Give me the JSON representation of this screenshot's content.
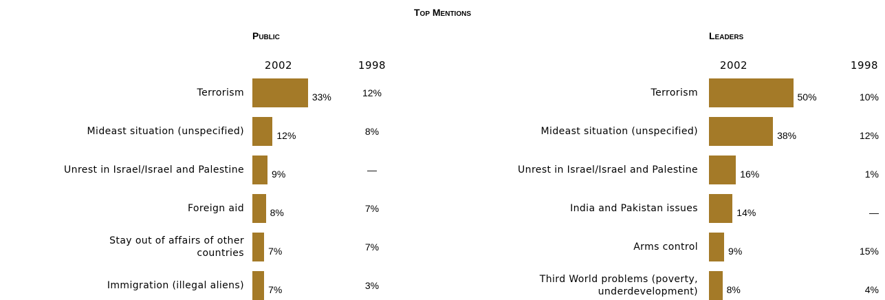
{
  "title": "Top Mentions",
  "chart_data": [
    {
      "type": "bar",
      "orientation": "horizontal",
      "title": "Public",
      "categories": [
        "Terrorism",
        "Mideast situation (unspecified)",
        "Unrest in Israel/Israel and Palestine",
        "Foreign aid",
        "Stay out of affairs of other\ncountries",
        "Immigration (illegal aliens)"
      ],
      "series": [
        {
          "name": "2002",
          "color": "#a47a28",
          "values": [
            33,
            12,
            9,
            8,
            7,
            7
          ],
          "value_labels": [
            "33%",
            "12%",
            "9%",
            "8%",
            "7%",
            "7%"
          ]
        },
        {
          "name": "1998",
          "values": [
            12,
            8,
            null,
            7,
            7,
            3
          ],
          "value_labels": [
            "12%",
            "8%",
            "—",
            "7%",
            "7%",
            "3%"
          ]
        }
      ]
    },
    {
      "type": "bar",
      "orientation": "horizontal",
      "title": "Leaders",
      "categories": [
        "Terrorism",
        "Mideast situation (unspecified)",
        "Unrest in Israel/Israel and Palestine",
        "India and Pakistan issues",
        "Arms control",
        "Third World problems (poverty,\nunderdevelopment)"
      ],
      "series": [
        {
          "name": "2002",
          "color": "#a47a28",
          "values": [
            50,
            38,
            16,
            14,
            9,
            8
          ],
          "value_labels": [
            "50%",
            "38%",
            "16%",
            "14%",
            "9%",
            "8%"
          ]
        },
        {
          "name": "1998",
          "values": [
            10,
            12,
            1,
            null,
            15,
            4
          ],
          "value_labels": [
            "10%",
            "12%",
            "1%",
            "—",
            "15%",
            "4%"
          ]
        }
      ]
    }
  ]
}
